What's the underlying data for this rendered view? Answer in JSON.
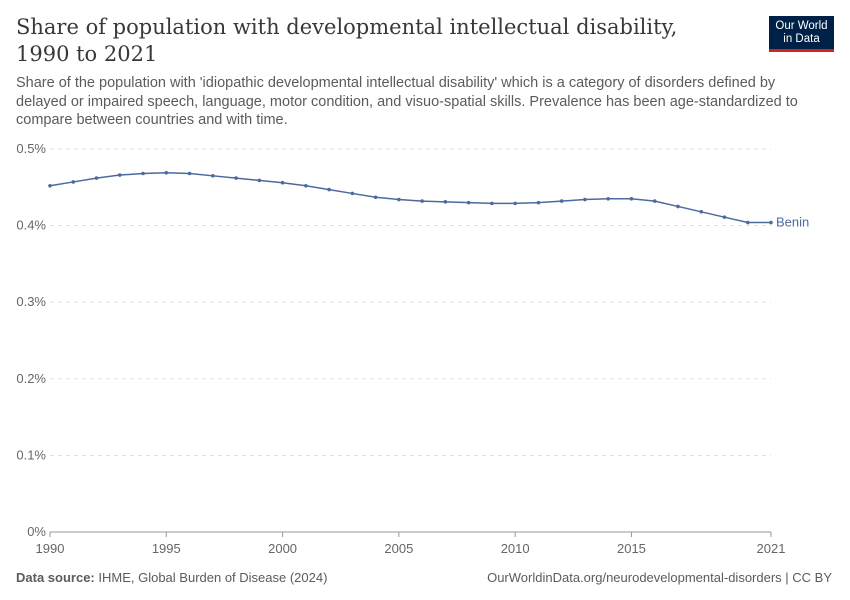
{
  "header": {
    "title": "Share of population with developmental intellectual disability, 1990 to 2021",
    "subtitle": "Share of the population with 'idiopathic developmental intellectual disability' which is a category of disorders defined by delayed or impaired speech, language, motor condition, and visuo-spatial skills. Prevalence has been age-standardized to compare between countries and with time.",
    "logo_line1": "Our World",
    "logo_line2": "in Data"
  },
  "chart_data": {
    "type": "line",
    "title": "Share of population with developmental intellectual disability, 1990 to 2021",
    "xlabel": "",
    "ylabel": "",
    "xlim": [
      1990,
      2021
    ],
    "ylim": [
      0,
      0.5
    ],
    "grid": "horizontal dashed",
    "x_ticks": [
      "1990",
      "1995",
      "2000",
      "2005",
      "2010",
      "2015",
      "2021"
    ],
    "x_tick_values": [
      1990,
      1995,
      2000,
      2005,
      2010,
      2015,
      2021
    ],
    "y_ticks": [
      "0%",
      "0.1%",
      "0.2%",
      "0.3%",
      "0.4%",
      "0.5%"
    ],
    "y_tick_values": [
      0,
      0.1,
      0.2,
      0.3,
      0.4,
      0.5
    ],
    "series": [
      {
        "name": "Benin",
        "color": "#4c6a9c",
        "x": [
          1990,
          1991,
          1992,
          1993,
          1994,
          1995,
          1996,
          1997,
          1998,
          1999,
          2000,
          2001,
          2002,
          2003,
          2004,
          2005,
          2006,
          2007,
          2008,
          2009,
          2010,
          2011,
          2012,
          2013,
          2014,
          2015,
          2016,
          2017,
          2018,
          2019,
          2020,
          2021
        ],
        "values": [
          0.452,
          0.457,
          0.462,
          0.466,
          0.468,
          0.469,
          0.468,
          0.465,
          0.462,
          0.459,
          0.456,
          0.452,
          0.447,
          0.442,
          0.437,
          0.434,
          0.432,
          0.431,
          0.43,
          0.429,
          0.429,
          0.43,
          0.432,
          0.434,
          0.435,
          0.435,
          0.432,
          0.425,
          0.418,
          0.411,
          0.404,
          0.404
        ]
      }
    ]
  },
  "footer": {
    "source_label": "Data source:",
    "source": "IHME, Global Burden of Disease (2024)",
    "url": "OurWorldinData.org/neurodevelopmental-disorders | CC BY"
  }
}
